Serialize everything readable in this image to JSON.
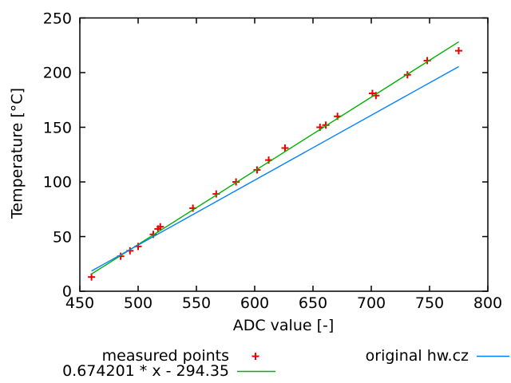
{
  "window": {
    "background": "#ffffff"
  },
  "chart_data": {
    "type": "scatter",
    "title": "",
    "xlabel": "ADC value [-]",
    "ylabel": "Temperature [°C]",
    "xlim": [
      450,
      800
    ],
    "ylim": [
      0,
      250
    ],
    "xticks": [
      450,
      500,
      550,
      600,
      650,
      700,
      750,
      800
    ],
    "yticks": [
      0,
      50,
      100,
      150,
      200,
      250
    ],
    "grid": false,
    "legend_position": "below-plot",
    "frame_color": "#000000",
    "series": [
      {
        "name": "measured points",
        "style": "points",
        "marker": "plus",
        "color": "#ee0000",
        "points": [
          [
            460,
            13
          ],
          [
            485,
            32
          ],
          [
            493,
            37
          ],
          [
            500,
            41
          ],
          [
            513,
            52
          ],
          [
            517,
            57
          ],
          [
            519,
            59
          ],
          [
            547,
            76
          ],
          [
            567,
            89
          ],
          [
            584,
            100
          ],
          [
            602,
            111
          ],
          [
            612,
            120
          ],
          [
            626,
            131
          ],
          [
            656,
            150
          ],
          [
            661,
            152
          ],
          [
            671,
            160
          ],
          [
            701,
            181
          ],
          [
            704,
            179
          ],
          [
            731,
            198
          ],
          [
            748,
            211
          ],
          [
            775,
            220
          ]
        ]
      },
      {
        "name": "0.674201 * x - 294.35",
        "style": "line",
        "color": "#00b000",
        "fit": {
          "slope": 0.674201,
          "intercept": -294.35
        },
        "x_range": [
          460,
          775
        ]
      },
      {
        "name": "original hw.cz",
        "style": "line",
        "color": "#0080ff",
        "points": [
          [
            460,
            18.5
          ],
          [
            775,
            205.5
          ]
        ]
      }
    ]
  }
}
